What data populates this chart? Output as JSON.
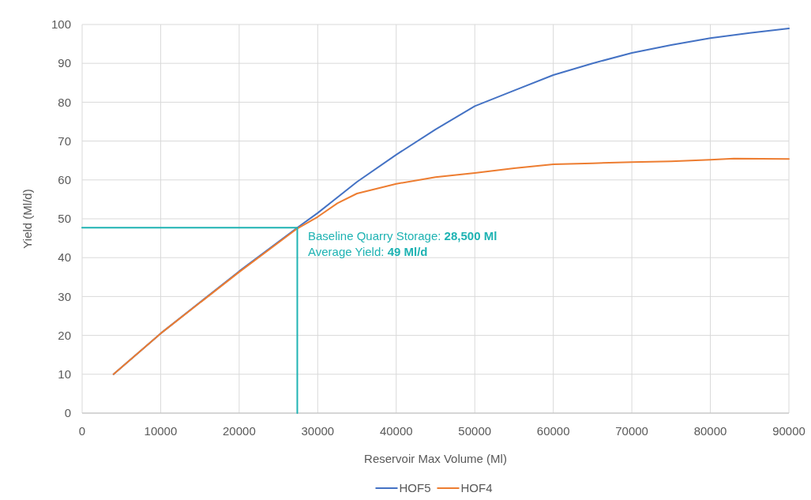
{
  "chart_data": {
    "type": "line",
    "xlabel": "Reservoir Max Volume (Ml)",
    "ylabel": "Yield (Ml/d)",
    "xlim": [
      0,
      90000
    ],
    "xticks": [
      0,
      10000,
      20000,
      30000,
      40000,
      50000,
      60000,
      70000,
      80000,
      90000
    ],
    "ylim": [
      0,
      100
    ],
    "yticks": [
      0,
      10,
      20,
      30,
      40,
      50,
      60,
      70,
      80,
      90,
      100
    ],
    "grid": true,
    "legend": "bottom",
    "marker": "none",
    "line_style": "solid",
    "series": [
      {
        "name": "HOF5",
        "color": "#4472c4",
        "x": [
          4000,
          10000,
          20000,
          27400,
          30000,
          35000,
          40000,
          45000,
          50000,
          55000,
          60000,
          65000,
          70000,
          75000,
          80000,
          85000,
          90000
        ],
        "values": [
          10,
          20.5,
          36.5,
          47.7,
          51.5,
          59.5,
          66.5,
          73,
          79,
          83,
          87,
          90,
          92.7,
          94.7,
          96.5,
          97.8,
          99
        ]
      },
      {
        "name": "HOF4",
        "color": "#ed7d31",
        "x": [
          4000,
          10000,
          20000,
          27400,
          30000,
          32500,
          35000,
          40000,
          45000,
          50000,
          55000,
          60000,
          65000,
          70000,
          75000,
          80000,
          83000,
          90000
        ],
        "values": [
          10,
          20.5,
          36.3,
          47.5,
          50.5,
          54,
          56.5,
          59,
          60.7,
          61.8,
          63,
          64,
          64.3,
          64.6,
          64.8,
          65.2,
          65.5,
          65.4
        ]
      },
      {
        "type": "line",
        "color": "#1fb3b3",
        "x": [
          0,
          27400,
          27400
        ],
        "values": [
          47.7,
          47.7,
          0
        ]
      }
    ],
    "annotations": [
      "Baseline Quarry Storage: 28,500 Ml",
      "Average Yield: 49 Ml/d"
    ]
  }
}
